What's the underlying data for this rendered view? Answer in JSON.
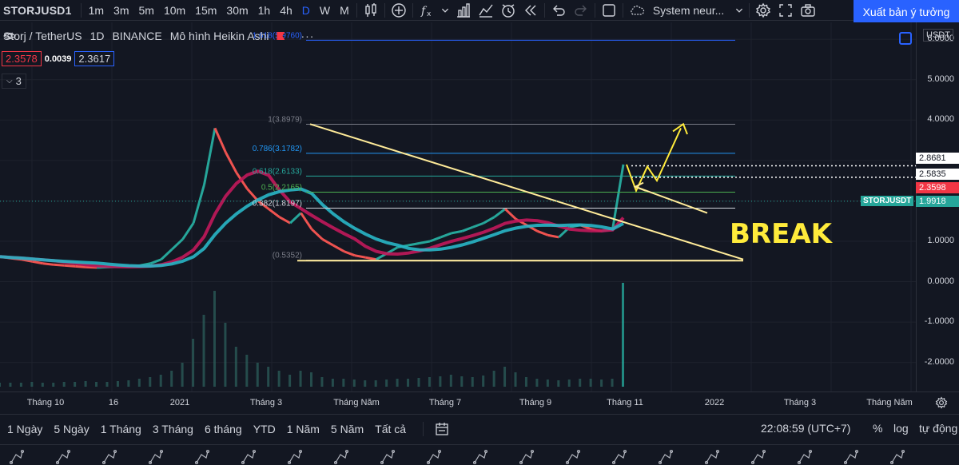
{
  "toolbar": {
    "symbol": "STORJUSD1",
    "intervals": [
      "1m",
      "3m",
      "5m",
      "10m",
      "15m",
      "30m",
      "1h",
      "4h",
      "D",
      "W",
      "M"
    ],
    "active_interval": "D",
    "indicator_name": "System neur...",
    "publish_label": "Xuất bản ý tưởng"
  },
  "legend": {
    "pair": "Storj / TetherUS",
    "timeframe": "1D",
    "exchange": "BINANCE",
    "chart_style": "Mô hình Heikin Ashi",
    "bid": "2.3578",
    "spread": "0.0039",
    "ask": "2.3617",
    "indicators_count": "3"
  },
  "price_scale": {
    "currency": "USDT",
    "ticks": [
      "6.0000",
      "5.0000",
      "4.0000",
      "3.0000",
      "1.0000",
      "0.0000",
      "-1.0000",
      "-2.0000"
    ],
    "level_labels": [
      "2.8681",
      "2.5835"
    ],
    "current_price": "2.3598",
    "symbol_tag": "STORJUSDT",
    "symbol_price": "1.9918"
  },
  "chart_data": {
    "type": "line",
    "fib_levels": [
      {
        "label": "1.618(5.9760)",
        "value": 5.976,
        "color": "#2962ff"
      },
      {
        "label": "1(3.8979)",
        "value": 3.8979,
        "color": "#787b86"
      },
      {
        "label": "0.786(3.1782)",
        "value": 3.1782,
        "color": "#2196f3"
      },
      {
        "label": "0.618(2.6133)",
        "value": 2.6133,
        "color": "#26a69a"
      },
      {
        "label": "0.5(2.2165)",
        "value": 2.2165,
        "color": "#4caf50"
      },
      {
        "label": "0.382(1.8197)",
        "value": 1.8197,
        "color": "#d1d4dc"
      },
      {
        "label": "(0.5352)",
        "value": 0.5352,
        "color": "#787b86"
      }
    ],
    "annotation": "BREAK",
    "ylim": [
      -2.6,
      6.3
    ],
    "price_path": [
      0.62,
      0.58,
      0.55,
      0.5,
      0.45,
      0.42,
      0.4,
      0.38,
      0.36,
      0.35,
      0.36,
      0.37,
      0.38,
      0.4,
      0.45,
      0.55,
      0.8,
      1.05,
      1.45,
      2.4,
      3.8,
      3.2,
      2.7,
      2.3,
      2.0,
      1.8,
      1.6,
      1.45,
      1.7,
      1.3,
      1.05,
      0.9,
      0.75,
      0.65,
      0.6,
      0.55,
      0.7,
      0.85,
      0.9,
      0.95,
      1.0,
      1.1,
      1.2,
      1.25,
      1.35,
      1.45,
      1.6,
      1.8,
      1.55,
      1.4,
      1.25,
      1.15,
      1.1,
      1.35,
      1.4,
      1.3,
      1.25,
      1.3,
      2.9
    ],
    "volume": [
      0.05,
      0.05,
      0.05,
      0.06,
      0.05,
      0.05,
      0.06,
      0.06,
      0.07,
      0.06,
      0.06,
      0.07,
      0.08,
      0.1,
      0.12,
      0.15,
      0.2,
      0.3,
      0.6,
      0.9,
      1.2,
      0.8,
      0.5,
      0.4,
      0.3,
      0.25,
      0.2,
      0.15,
      0.2,
      0.18,
      0.12,
      0.1,
      0.1,
      0.09,
      0.08,
      0.08,
      0.09,
      0.1,
      0.1,
      0.11,
      0.12,
      0.13,
      0.15,
      0.13,
      0.12,
      0.14,
      0.2,
      0.25,
      0.18,
      0.12,
      0.1,
      0.09,
      0.08,
      0.09,
      0.1,
      0.1,
      0.09,
      0.1,
      1.3
    ]
  },
  "time_axis": [
    "Tháng 10",
    "16",
    "2021",
    "Tháng 3",
    "Tháng Năm",
    "Tháng 7",
    "Tháng 9",
    "Tháng 11",
    "2022",
    "Tháng 3",
    "Tháng Năm"
  ],
  "bottom": {
    "ranges": [
      "1 Ngày",
      "5 Ngày",
      "1 Tháng",
      "3 Tháng",
      "6 tháng",
      "YTD",
      "1 Năm",
      "5 Năm",
      "Tất cả"
    ],
    "clock": "22:08:59 (UTC+7)",
    "percent": "%",
    "log": "log",
    "auto": "tự động"
  }
}
